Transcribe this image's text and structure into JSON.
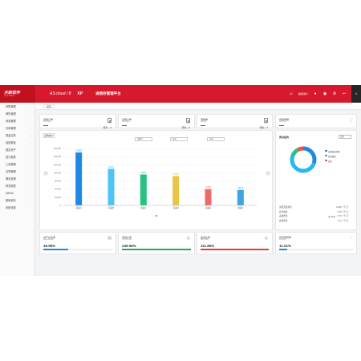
{
  "header": {
    "logo_line1": "天新软件",
    "logo_line2": "Tianxin Software",
    "product": "A3.cloud / 8",
    "edition": "XP",
    "system": "进销存管理平台",
    "user_label": "超级用户"
  },
  "sidebar": {
    "items": [
      {
        "label": "采购管理"
      },
      {
        "label": "销售管理"
      },
      {
        "label": "商品管理"
      },
      {
        "label": "仓库管理"
      },
      {
        "label": "现金往来"
      },
      {
        "label": "经营看板"
      },
      {
        "label": "固定资产"
      },
      {
        "label": "统计报表"
      },
      {
        "label": "工资管理"
      },
      {
        "label": "合同管理"
      },
      {
        "label": "期末处理"
      },
      {
        "label": "财务报表"
      },
      {
        "label": "WMSA"
      },
      {
        "label": "基础资料"
      },
      {
        "label": "系统设置"
      }
    ]
  },
  "tabs": [
    {
      "label": "首页"
    }
  ],
  "stats": [
    {
      "title": "采购订单",
      "subtitle": "purchase",
      "count_label": "待办：0"
    },
    {
      "title": "采购订单",
      "subtitle": "purchase",
      "count_label": "待办：0"
    },
    {
      "title": "调拨单",
      "subtitle": "transfer",
      "count_label": "待办：0"
    },
    {
      "title": "费用单据",
      "subtitle": "expense",
      "count_label": ""
    }
  ],
  "chart": {
    "title": "采购统计",
    "selects": [
      "采购户",
      "仓库",
      "年份"
    ]
  },
  "chart_data": {
    "type": "bar",
    "categories": [
      "商品A",
      "商品B",
      "商品C",
      "商品D",
      "商品E",
      "商品F"
    ],
    "values": [
      130000,
      90000,
      76000,
      72000,
      40000,
      38000
    ],
    "value_labels": [
      "130000",
      "90000",
      "76000",
      "72000",
      "40000",
      "38000"
    ],
    "colors": [
      "#1e88e5",
      "#4fc3f7",
      "#26c281",
      "#e8c547",
      "#ef6b6b",
      "#3da5e0"
    ],
    "ylim": [
      0,
      140000
    ],
    "yticks": [
      "0",
      "20,000",
      "40,000",
      "60,000",
      "80,000",
      "100,000",
      "120,000",
      "140,000"
    ]
  },
  "right_panel": {
    "title": "费用结构",
    "select": "全部",
    "donut": [
      {
        "label": "办公费",
        "value": 30,
        "color": "#1e88e5"
      },
      {
        "label": "差旅费",
        "value": 50,
        "color": "#29b6f6"
      },
      {
        "label": "招待费",
        "value": 12,
        "color": "#26c281"
      },
      {
        "label": "其他",
        "value": 8,
        "color": "#ef5350"
      }
    ],
    "legend": [
      {
        "label": "运费及装卸费",
        "color": "#1e88e5"
      },
      {
        "label": "招待费用",
        "color": "#26c281"
      },
      {
        "label": "其他",
        "color": "#ef5350"
      }
    ],
    "pager": "1/3",
    "rows": [
      {
        "k": "运费及装卸费",
        "v": "22.88（千元）"
      },
      {
        "k": "招待费用",
        "v": "6.18（千元）"
      },
      {
        "k": "差旅费用",
        "v": "3.75（千元）"
      },
      {
        "k": "其他费用",
        "v": "2.12（千元）"
      }
    ]
  },
  "kpis": [
    {
      "title": "资产负债率",
      "subtitle": "asset-liability",
      "value": "35.96%",
      "pct": 35.96,
      "color": "#1e88e5",
      "icon": "document-icon"
    },
    {
      "title": "流动比率",
      "subtitle": "current ratio",
      "value": "249.58%",
      "pct": 100,
      "color": "#26a65b",
      "icon": "chart-icon"
    },
    {
      "title": "速动比率",
      "subtitle": "quick ratio",
      "value": "111.86%",
      "pct": 100,
      "color": "#e53935",
      "icon": "chart-icon"
    },
    {
      "title": "存货周转率",
      "subtitle": "inventory",
      "value": "11.01%",
      "pct": 11.01,
      "color": "#1e88e5",
      "icon": "pie-icon"
    }
  ]
}
